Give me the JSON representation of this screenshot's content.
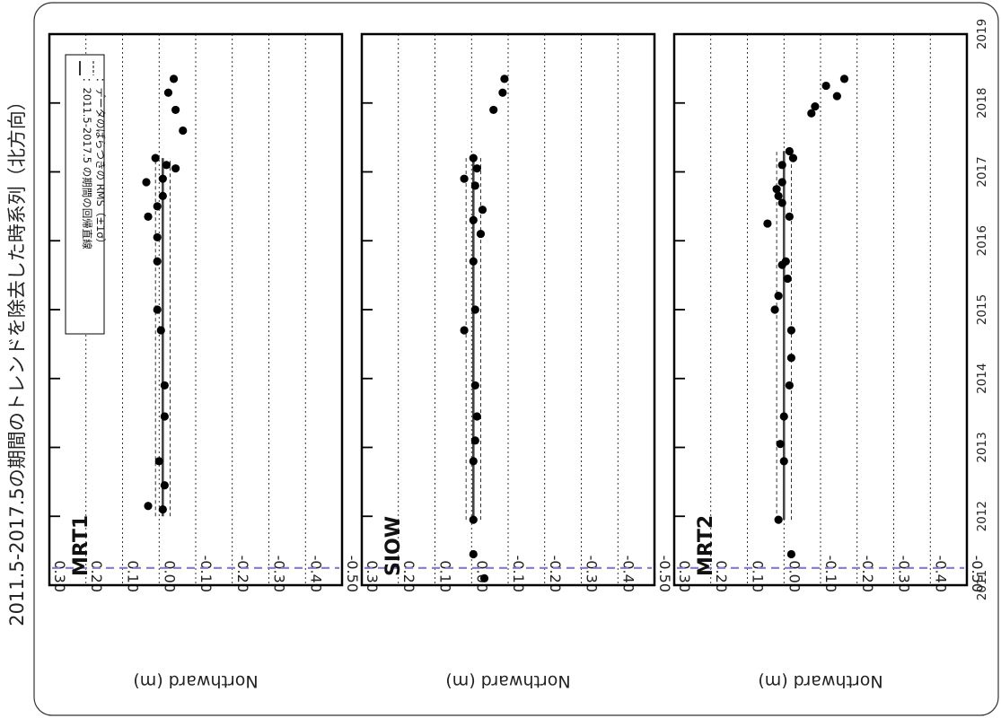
{
  "figure": {
    "title": "2011.5-2017.5の期間のトレンドを除去した時系列（北方向）"
  },
  "legend": {
    "regression": "：2011.5-2017.5 の期間の回帰直線",
    "rms": "：データのばらつきの RMS（±1σ）"
  },
  "value_ticks": [
    "0.30",
    "0.20",
    "0.10",
    "0.00",
    "-0.10",
    "-0.20",
    "-0.30",
    "-0.40",
    "-0.50"
  ],
  "year_ticks": [
    "2011",
    "2012",
    "2013",
    "2014",
    "2015",
    "2016",
    "2017",
    "2018",
    "2019"
  ],
  "colors": {
    "reference_line": "#8878c8",
    "points": "#000000",
    "regression": "#444444"
  },
  "chart_data": [
    {
      "type": "scatter",
      "station": "MRT1",
      "xlabel": "",
      "ylabel": "Northward (m)",
      "xlim": [
        2011,
        2019
      ],
      "ylim": [
        -0.5,
        0.3
      ],
      "reference_line_year": 2011.25,
      "regression": {
        "value": -0.01,
        "from": 2012.0,
        "to": 2017.2
      },
      "rms": 0.02,
      "points": [
        {
          "year": 2012.15,
          "value": 0.03
        },
        {
          "year": 2012.1,
          "value": -0.01
        },
        {
          "year": 2012.45,
          "value": -0.015
        },
        {
          "year": 2012.8,
          "value": 0.0
        },
        {
          "year": 2013.45,
          "value": -0.015
        },
        {
          "year": 2013.9,
          "value": -0.015
        },
        {
          "year": 2014.7,
          "value": -0.005
        },
        {
          "year": 2015.0,
          "value": 0.005
        },
        {
          "year": 2015.7,
          "value": 0.005
        },
        {
          "year": 2016.05,
          "value": 0.005
        },
        {
          "year": 2016.35,
          "value": 0.03
        },
        {
          "year": 2016.5,
          "value": 0.005
        },
        {
          "year": 2016.65,
          "value": -0.01
        },
        {
          "year": 2016.85,
          "value": 0.035
        },
        {
          "year": 2016.9,
          "value": -0.01
        },
        {
          "year": 2017.1,
          "value": -0.02
        },
        {
          "year": 2017.05,
          "value": -0.045
        },
        {
          "year": 2017.2,
          "value": 0.01
        },
        {
          "year": 2017.6,
          "value": -0.065
        },
        {
          "year": 2017.9,
          "value": -0.045
        },
        {
          "year": 2018.15,
          "value": -0.025
        },
        {
          "year": 2018.35,
          "value": -0.04
        }
      ]
    },
    {
      "type": "scatter",
      "station": "SIOW",
      "xlabel": "",
      "ylabel": "Northward (m)",
      "xlim": [
        2011,
        2019
      ],
      "ylim": [
        -0.5,
        0.3
      ],
      "reference_line_year": 2011.25,
      "regression": {
        "value": -0.005,
        "from": 2011.95,
        "to": 2017.2
      },
      "rms": 0.02,
      "points": [
        {
          "year": 2011.1,
          "value": -0.035
        },
        {
          "year": 2011.45,
          "value": -0.005
        },
        {
          "year": 2011.95,
          "value": -0.005
        },
        {
          "year": 2012.8,
          "value": -0.005
        },
        {
          "year": 2013.1,
          "value": -0.01
        },
        {
          "year": 2013.45,
          "value": -0.015
        },
        {
          "year": 2013.9,
          "value": -0.01
        },
        {
          "year": 2014.7,
          "value": 0.02
        },
        {
          "year": 2015.0,
          "value": -0.01
        },
        {
          "year": 2015.7,
          "value": -0.005
        },
        {
          "year": 2016.1,
          "value": -0.025
        },
        {
          "year": 2016.3,
          "value": -0.005
        },
        {
          "year": 2016.45,
          "value": -0.03
        },
        {
          "year": 2016.8,
          "value": -0.01
        },
        {
          "year": 2016.9,
          "value": 0.02
        },
        {
          "year": 2017.05,
          "value": -0.015
        },
        {
          "year": 2017.2,
          "value": -0.005
        },
        {
          "year": 2017.9,
          "value": -0.06
        },
        {
          "year": 2018.15,
          "value": -0.085
        },
        {
          "year": 2018.35,
          "value": -0.09
        }
      ]
    },
    {
      "type": "scatter",
      "station": "MRT2",
      "xlabel": "",
      "ylabel": "Northward (m)",
      "xlim": [
        2011,
        2019
      ],
      "ylim": [
        -0.5,
        0.3
      ],
      "reference_line_year": 2011.25,
      "regression": {
        "value": 0.0,
        "from": 2011.95,
        "to": 2017.3
      },
      "rms": 0.02,
      "points": [
        {
          "year": 2011.45,
          "value": -0.02
        },
        {
          "year": 2011.95,
          "value": 0.015
        },
        {
          "year": 2012.8,
          "value": 0.0
        },
        {
          "year": 2013.05,
          "value": 0.01
        },
        {
          "year": 2013.45,
          "value": 0.0
        },
        {
          "year": 2013.9,
          "value": -0.015
        },
        {
          "year": 2014.3,
          "value": -0.02
        },
        {
          "year": 2014.7,
          "value": -0.02
        },
        {
          "year": 2015.0,
          "value": 0.025
        },
        {
          "year": 2015.2,
          "value": 0.015
        },
        {
          "year": 2015.45,
          "value": -0.01
        },
        {
          "year": 2015.65,
          "value": 0.005
        },
        {
          "year": 2015.7,
          "value": -0.005
        },
        {
          "year": 2016.25,
          "value": 0.045
        },
        {
          "year": 2016.35,
          "value": -0.015
        },
        {
          "year": 2016.55,
          "value": 0.005
        },
        {
          "year": 2016.65,
          "value": 0.015
        },
        {
          "year": 2016.75,
          "value": 0.02
        },
        {
          "year": 2016.85,
          "value": 0.005
        },
        {
          "year": 2017.1,
          "value": 0.005
        },
        {
          "year": 2017.2,
          "value": -0.025
        },
        {
          "year": 2017.3,
          "value": -0.015
        },
        {
          "year": 2017.85,
          "value": -0.075
        },
        {
          "year": 2017.95,
          "value": -0.085
        },
        {
          "year": 2018.1,
          "value": -0.145
        },
        {
          "year": 2018.25,
          "value": -0.115
        },
        {
          "year": 2018.35,
          "value": -0.165
        }
      ]
    }
  ]
}
